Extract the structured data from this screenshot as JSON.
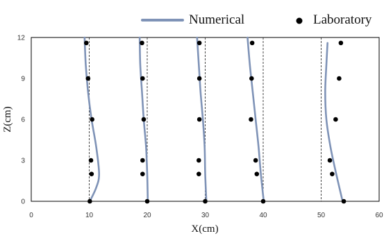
{
  "chart_data": {
    "type": "scatter",
    "xlabel": "X(cm)",
    "ylabel": "Z(cm)",
    "xlim": [
      0,
      60
    ],
    "ylim": [
      0,
      12
    ],
    "xticks": [
      "0",
      "10",
      "20",
      "30",
      "40",
      "50",
      "60"
    ],
    "yticks": [
      "0",
      "3",
      "6",
      "9",
      "12"
    ],
    "grid": false,
    "legend_position": "top",
    "line_color": "#7f93b7",
    "marker_color": "#000000",
    "reference_lines": [
      10,
      20,
      30,
      40,
      50
    ],
    "series": [
      {
        "name": "Numerical",
        "kind": "line",
        "curves": [
          [
            [
              9.2,
              12
            ],
            [
              9.4,
              10
            ],
            [
              9.8,
              8
            ],
            [
              10.4,
              6
            ],
            [
              11.2,
              4
            ],
            [
              11.7,
              2
            ],
            [
              11.2,
              1
            ],
            [
              10.1,
              0
            ]
          ],
          [
            [
              18.7,
              12
            ],
            [
              18.8,
              10
            ],
            [
              19.1,
              8
            ],
            [
              19.4,
              6
            ],
            [
              19.8,
              4
            ],
            [
              20.0,
              2
            ],
            [
              20.1,
              0
            ]
          ],
          [
            [
              28.6,
              12
            ],
            [
              28.9,
              10
            ],
            [
              29.2,
              8
            ],
            [
              29.6,
              6
            ],
            [
              29.9,
              4
            ],
            [
              30.0,
              2
            ],
            [
              30.2,
              0
            ]
          ],
          [
            [
              37.3,
              12
            ],
            [
              37.7,
              10
            ],
            [
              38.2,
              8
            ],
            [
              38.7,
              6
            ],
            [
              39.2,
              4
            ],
            [
              39.6,
              2
            ],
            [
              40.1,
              0
            ]
          ],
          [
            [
              51.1,
              11.6
            ],
            [
              50.9,
              10
            ],
            [
              50.7,
              8
            ],
            [
              50.9,
              6
            ],
            [
              51.6,
              4
            ],
            [
              52.6,
              2
            ],
            [
              53.7,
              0
            ]
          ]
        ]
      },
      {
        "name": "Laboratory",
        "kind": "scatter",
        "points": [
          [
            9.5,
            11.6
          ],
          [
            9.8,
            9.0
          ],
          [
            10.5,
            6.0
          ],
          [
            10.3,
            3.0
          ],
          [
            10.4,
            2.0
          ],
          [
            10.1,
            0.0
          ],
          [
            19.1,
            11.6
          ],
          [
            19.2,
            9.0
          ],
          [
            19.4,
            6.0
          ],
          [
            19.2,
            3.0
          ],
          [
            19.2,
            2.0
          ],
          [
            20.0,
            0.0
          ],
          [
            29.0,
            11.6
          ],
          [
            29.0,
            9.0
          ],
          [
            29.0,
            6.0
          ],
          [
            28.9,
            3.0
          ],
          [
            28.9,
            2.0
          ],
          [
            30.0,
            0.0
          ],
          [
            38.1,
            11.6
          ],
          [
            38.0,
            9.0
          ],
          [
            37.9,
            6.0
          ],
          [
            38.7,
            3.0
          ],
          [
            38.9,
            2.0
          ],
          [
            40.0,
            0.0
          ],
          [
            53.4,
            11.6
          ],
          [
            53.1,
            9.0
          ],
          [
            52.5,
            6.0
          ],
          [
            51.5,
            3.0
          ],
          [
            51.9,
            2.0
          ],
          [
            53.9,
            0.0
          ]
        ]
      }
    ]
  }
}
